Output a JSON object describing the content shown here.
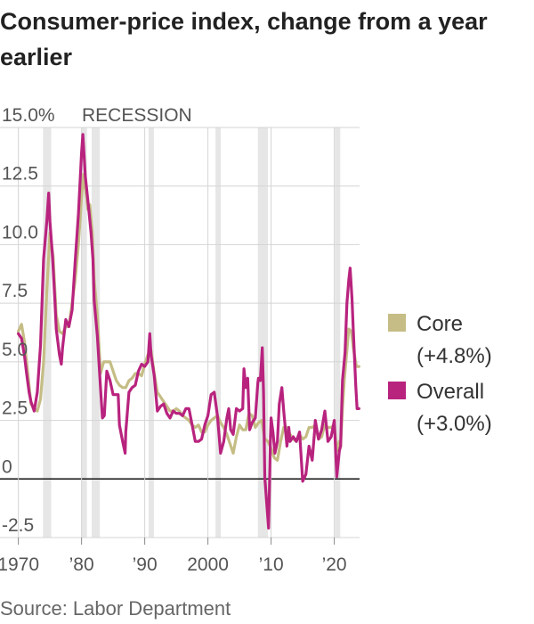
{
  "title": "Consumer-price index, change from a year earlier",
  "source": "Source: Labor Department",
  "colors": {
    "core": "#c5bd85",
    "overall": "#b8237e",
    "recession": "#e6e6e6",
    "grid": "#d4d4d4",
    "zero": "#111111"
  },
  "chart_data": {
    "type": "line",
    "title": "Consumer-price index, change from a year earlier",
    "xlabel": "",
    "ylabel": "",
    "xlim": [
      1968.5,
      2024
    ],
    "ylim": [
      -2.5,
      15
    ],
    "grid": "vertical and horizontal",
    "y_ticks": [
      {
        "value": 15,
        "label": "15.0%"
      },
      {
        "value": 12.5,
        "label": "12.5"
      },
      {
        "value": 10,
        "label": "10.0"
      },
      {
        "value": 7.5,
        "label": "7.5"
      },
      {
        "value": 5,
        "label": "5.0"
      },
      {
        "value": 2.5,
        "label": "2.5"
      },
      {
        "value": 0,
        "label": "0"
      },
      {
        "value": -2.5,
        "label": "-2.5"
      }
    ],
    "x_ticks": [
      {
        "value": 1970,
        "label": "1970"
      },
      {
        "value": 1980,
        "label": "’80"
      },
      {
        "value": 1990,
        "label": "’90"
      },
      {
        "value": 2000,
        "label": "2000"
      },
      {
        "value": 2010,
        "label": "’10"
      },
      {
        "value": 2020,
        "label": "’20"
      }
    ],
    "recession_label": "RECESSION",
    "recessions": [
      [
        1973.9,
        1975.2
      ],
      [
        1980.0,
        1980.5
      ],
      [
        1981.6,
        1982.9
      ],
      [
        1990.6,
        1991.2
      ],
      [
        2001.2,
        2001.9
      ],
      [
        2007.9,
        2009.5
      ],
      [
        2020.1,
        2020.4
      ]
    ],
    "legend": [
      {
        "name": "Core",
        "note": "(+4.8%)",
        "color": "#c5bd85"
      },
      {
        "name": "Overall",
        "note": "(+3.0%)",
        "color": "#b8237e"
      }
    ],
    "series": [
      {
        "name": "Core",
        "color": "#c5bd85",
        "points": [
          [
            1970,
            6.3
          ],
          [
            1970.5,
            6.6
          ],
          [
            1971,
            5.8
          ],
          [
            1971.5,
            4.5
          ],
          [
            1972,
            3.2
          ],
          [
            1972.5,
            3.0
          ],
          [
            1973,
            2.9
          ],
          [
            1973.5,
            3.4
          ],
          [
            1974,
            5.0
          ],
          [
            1974.5,
            8.0
          ],
          [
            1975,
            10.5
          ],
          [
            1975.5,
            9.5
          ],
          [
            1976,
            7.0
          ],
          [
            1976.5,
            6.3
          ],
          [
            1977,
            6.2
          ],
          [
            1977.5,
            6.5
          ],
          [
            1978,
            6.5
          ],
          [
            1978.5,
            7.5
          ],
          [
            1979,
            8.5
          ],
          [
            1979.5,
            10.0
          ],
          [
            1980,
            12.0
          ],
          [
            1980.3,
            13.0
          ],
          [
            1980.8,
            12.0
          ],
          [
            1981,
            11.5
          ],
          [
            1981.3,
            11.7
          ],
          [
            1981.7,
            10.5
          ],
          [
            1982,
            8.5
          ],
          [
            1982.5,
            7.0
          ],
          [
            1983,
            4.5
          ],
          [
            1983.5,
            5.0
          ],
          [
            1984,
            5.0
          ],
          [
            1984.5,
            5.0
          ],
          [
            1985,
            4.6
          ],
          [
            1985.5,
            4.2
          ],
          [
            1986,
            4.0
          ],
          [
            1986.5,
            3.9
          ],
          [
            1987,
            3.9
          ],
          [
            1987.5,
            4.2
          ],
          [
            1988,
            4.3
          ],
          [
            1988.5,
            4.5
          ],
          [
            1989,
            4.5
          ],
          [
            1989.5,
            4.4
          ],
          [
            1990,
            4.9
          ],
          [
            1990.5,
            5.3
          ],
          [
            1991,
            5.5
          ],
          [
            1991.5,
            4.5
          ],
          [
            1992,
            3.7
          ],
          [
            1992.5,
            3.5
          ],
          [
            1993,
            3.3
          ],
          [
            1993.5,
            3.1
          ],
          [
            1994,
            2.9
          ],
          [
            1994.5,
            2.9
          ],
          [
            1995,
            3.0
          ],
          [
            1995.5,
            2.9
          ],
          [
            1996,
            2.7
          ],
          [
            1996.5,
            2.6
          ],
          [
            1997,
            2.5
          ],
          [
            1997.5,
            2.3
          ],
          [
            1998,
            2.2
          ],
          [
            1998.5,
            2.3
          ],
          [
            1999,
            2.0
          ],
          [
            1999.5,
            2.0
          ],
          [
            2000,
            2.3
          ],
          [
            2000.5,
            2.5
          ],
          [
            2001,
            2.6
          ],
          [
            2001.5,
            2.7
          ],
          [
            2002,
            2.4
          ],
          [
            2002.5,
            2.2
          ],
          [
            2003,
            1.9
          ],
          [
            2003.5,
            1.5
          ],
          [
            2004,
            1.1
          ],
          [
            2004.5,
            1.8
          ],
          [
            2005,
            2.3
          ],
          [
            2005.5,
            2.1
          ],
          [
            2006,
            2.1
          ],
          [
            2006.5,
            2.8
          ],
          [
            2007,
            2.7
          ],
          [
            2007.5,
            2.2
          ],
          [
            2008,
            2.4
          ],
          [
            2008.5,
            2.5
          ],
          [
            2009,
            1.7
          ],
          [
            2009.5,
            1.6
          ],
          [
            2010,
            1.3
          ],
          [
            2010.5,
            0.9
          ],
          [
            2011,
            0.8
          ],
          [
            2011.5,
            1.6
          ],
          [
            2012,
            2.2
          ],
          [
            2012.5,
            2.2
          ],
          [
            2013,
            1.9
          ],
          [
            2013.5,
            1.7
          ],
          [
            2014,
            1.6
          ],
          [
            2014.5,
            1.9
          ],
          [
            2015,
            1.7
          ],
          [
            2015.5,
            1.8
          ],
          [
            2016,
            2.2
          ],
          [
            2016.5,
            2.2
          ],
          [
            2017,
            2.3
          ],
          [
            2017.5,
            1.7
          ],
          [
            2018,
            1.8
          ],
          [
            2018.5,
            2.3
          ],
          [
            2019,
            2.2
          ],
          [
            2019.5,
            2.2
          ],
          [
            2020,
            2.3
          ],
          [
            2020.4,
            1.2
          ],
          [
            2020.8,
            1.6
          ],
          [
            2021,
            1.4
          ],
          [
            2021.3,
            3.0
          ],
          [
            2021.6,
            4.3
          ],
          [
            2022,
            5.5
          ],
          [
            2022.3,
            6.4
          ],
          [
            2022.7,
            6.3
          ],
          [
            2023,
            5.6
          ],
          [
            2023.5,
            4.8
          ],
          [
            2023.9,
            4.8
          ]
        ]
      },
      {
        "name": "Overall",
        "color": "#b8237e",
        "points": [
          [
            1970,
            6.2
          ],
          [
            1970.5,
            6.0
          ],
          [
            1971,
            5.2
          ],
          [
            1971.3,
            4.5
          ],
          [
            1971.7,
            3.7
          ],
          [
            1972,
            3.3
          ],
          [
            1972.5,
            2.9
          ],
          [
            1973,
            3.7
          ],
          [
            1973.5,
            5.7
          ],
          [
            1974,
            9.4
          ],
          [
            1974.5,
            11.0
          ],
          [
            1974.8,
            12.2
          ],
          [
            1975,
            11.0
          ],
          [
            1975.4,
            9.5
          ],
          [
            1975.8,
            7.5
          ],
          [
            1976,
            6.4
          ],
          [
            1976.5,
            5.3
          ],
          [
            1976.8,
            4.9
          ],
          [
            1977,
            5.6
          ],
          [
            1977.5,
            6.8
          ],
          [
            1978,
            6.5
          ],
          [
            1978.5,
            7.2
          ],
          [
            1979,
            9.3
          ],
          [
            1979.5,
            11.3
          ],
          [
            1980,
            13.9
          ],
          [
            1980.2,
            14.7
          ],
          [
            1980.6,
            12.9
          ],
          [
            1981,
            11.9
          ],
          [
            1981.5,
            10.5
          ],
          [
            1981.8,
            9.4
          ],
          [
            1982,
            7.6
          ],
          [
            1982.5,
            6.1
          ],
          [
            1983,
            3.9
          ],
          [
            1983.3,
            2.6
          ],
          [
            1983.6,
            2.7
          ],
          [
            1984,
            4.6
          ],
          [
            1984.5,
            4.2
          ],
          [
            1985,
            3.6
          ],
          [
            1985.5,
            3.6
          ],
          [
            1985.8,
            3.6
          ],
          [
            1986,
            2.3
          ],
          [
            1986.5,
            1.6
          ],
          [
            1986.9,
            1.1
          ],
          [
            1987,
            2.0
          ],
          [
            1987.5,
            3.7
          ],
          [
            1988,
            3.9
          ],
          [
            1988.5,
            4.0
          ],
          [
            1989,
            4.6
          ],
          [
            1989.5,
            4.9
          ],
          [
            1990,
            4.8
          ],
          [
            1990.5,
            5.0
          ],
          [
            1990.8,
            6.2
          ],
          [
            1991,
            5.3
          ],
          [
            1991.5,
            4.4
          ],
          [
            1992,
            2.9
          ],
          [
            1992.5,
            3.1
          ],
          [
            1993,
            3.2
          ],
          [
            1993.5,
            2.8
          ],
          [
            1994,
            2.6
          ],
          [
            1994.5,
            2.9
          ],
          [
            1995,
            2.8
          ],
          [
            1995.5,
            2.8
          ],
          [
            1996,
            2.7
          ],
          [
            1996.5,
            3.0
          ],
          [
            1997,
            3.0
          ],
          [
            1997.5,
            2.3
          ],
          [
            1998,
            1.6
          ],
          [
            1998.5,
            1.6
          ],
          [
            1999,
            1.7
          ],
          [
            1999.5,
            2.3
          ],
          [
            2000,
            2.7
          ],
          [
            2000.5,
            3.6
          ],
          [
            2001,
            3.7
          ],
          [
            2001.5,
            2.7
          ],
          [
            2002,
            1.1
          ],
          [
            2002.5,
            1.6
          ],
          [
            2003,
            2.6
          ],
          [
            2003.3,
            3.0
          ],
          [
            2003.6,
            2.1
          ],
          [
            2004,
            1.9
          ],
          [
            2004.5,
            3.0
          ],
          [
            2005,
            2.9
          ],
          [
            2005.5,
            3.0
          ],
          [
            2005.7,
            4.7
          ],
          [
            2006,
            3.9
          ],
          [
            2006.3,
            4.3
          ],
          [
            2006.6,
            2.1
          ],
          [
            2007,
            2.4
          ],
          [
            2007.5,
            2.6
          ],
          [
            2007.9,
            4.1
          ],
          [
            2008,
            4.3
          ],
          [
            2008.3,
            4.2
          ],
          [
            2008.6,
            5.6
          ],
          [
            2008.8,
            3.7
          ],
          [
            2009,
            0.1
          ],
          [
            2009.3,
            -1.0
          ],
          [
            2009.6,
            -2.1
          ],
          [
            2009.9,
            1.8
          ],
          [
            2010,
            2.6
          ],
          [
            2010.3,
            2.0
          ],
          [
            2010.6,
            1.1
          ],
          [
            2011,
            1.6
          ],
          [
            2011.3,
            3.2
          ],
          [
            2011.7,
            3.9
          ],
          [
            2012,
            2.9
          ],
          [
            2012.5,
            1.4
          ],
          [
            2012.8,
            2.2
          ],
          [
            2013,
            1.6
          ],
          [
            2013.5,
            1.8
          ],
          [
            2014,
            1.6
          ],
          [
            2014.5,
            2.0
          ],
          [
            2015,
            -0.1
          ],
          [
            2015.5,
            0.2
          ],
          [
            2016,
            1.4
          ],
          [
            2016.5,
            0.8
          ],
          [
            2016.9,
            2.1
          ],
          [
            2017,
            2.5
          ],
          [
            2017.5,
            1.7
          ],
          [
            2018,
            2.1
          ],
          [
            2018.5,
            2.9
          ],
          [
            2019,
            1.6
          ],
          [
            2019.5,
            1.8
          ],
          [
            2020,
            2.5
          ],
          [
            2020.4,
            0.1
          ],
          [
            2020.8,
            1.2
          ],
          [
            2021,
            1.4
          ],
          [
            2021.3,
            4.2
          ],
          [
            2021.7,
            5.4
          ],
          [
            2022,
            7.5
          ],
          [
            2022.3,
            8.5
          ],
          [
            2022.5,
            9.0
          ],
          [
            2022.8,
            7.7
          ],
          [
            2023,
            6.4
          ],
          [
            2023.4,
            4.0
          ],
          [
            2023.6,
            3.0
          ],
          [
            2023.9,
            3.0
          ]
        ]
      }
    ]
  }
}
